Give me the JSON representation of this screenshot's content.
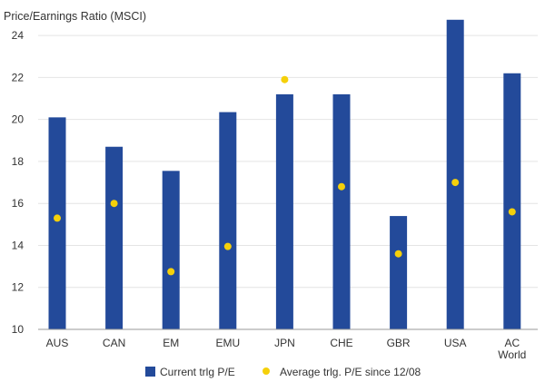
{
  "chart_data": {
    "type": "bar",
    "title": "Price/Earnings Ratio (MSCI)",
    "categories": [
      [
        "AUS"
      ],
      [
        "CAN"
      ],
      [
        "EM"
      ],
      [
        "EMU"
      ],
      [
        "JPN"
      ],
      [
        "CHE"
      ],
      [
        "GBR"
      ],
      [
        "USA"
      ],
      [
        "AC",
        "World"
      ]
    ],
    "ylim": [
      10,
      25
    ],
    "yticks": [
      10,
      12,
      14,
      16,
      18,
      20,
      22,
      24
    ],
    "grid": true,
    "legend_position": "bottom",
    "series": [
      {
        "name": "Current trlg P/E",
        "kind": "bar",
        "color": "#234a9a",
        "values": [
          20.1,
          18.7,
          17.55,
          20.35,
          21.2,
          21.2,
          15.4,
          24.75,
          22.2
        ]
      },
      {
        "name": "Average trlg. P/E since 12/08",
        "kind": "scatter",
        "color": "#f5d00a",
        "values": [
          15.3,
          16.0,
          12.75,
          13.95,
          21.9,
          16.8,
          13.6,
          17.0,
          15.6
        ]
      }
    ]
  }
}
